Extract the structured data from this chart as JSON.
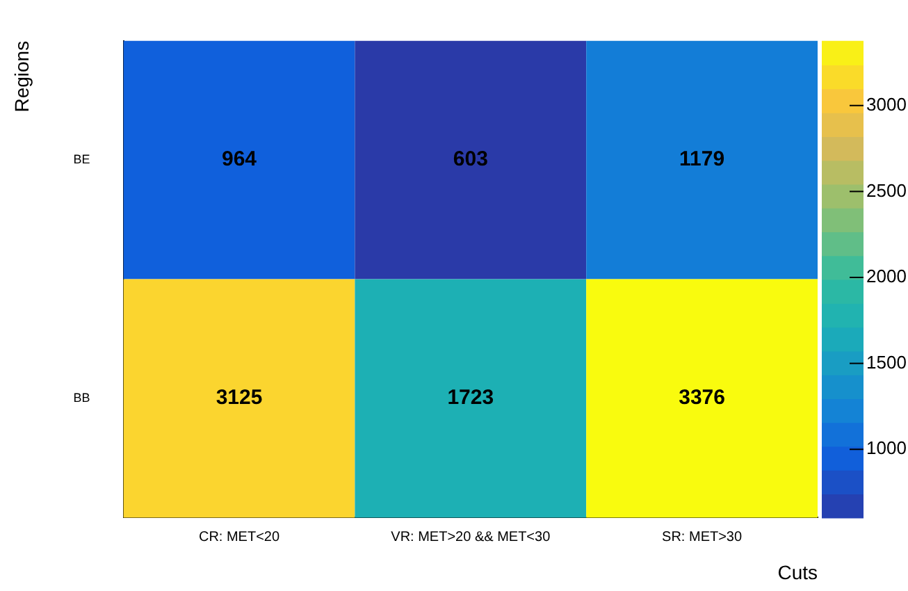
{
  "chart_data": {
    "type": "heatmap",
    "xlabel": "Cuts",
    "ylabel": "Regions",
    "categories": [
      "CR: MET<20",
      "VR: MET>20 && MET<30",
      "SR: MET>30"
    ],
    "y_categories": [
      "BE",
      "BB"
    ],
    "cells": [
      [
        964,
        603,
        1179
      ],
      [
        3125,
        1723,
        3376
      ]
    ],
    "clim": [
      603,
      3376
    ],
    "cticks": [
      1000,
      1500,
      2000,
      2500,
      3000
    ],
    "data_labels": true
  }
}
